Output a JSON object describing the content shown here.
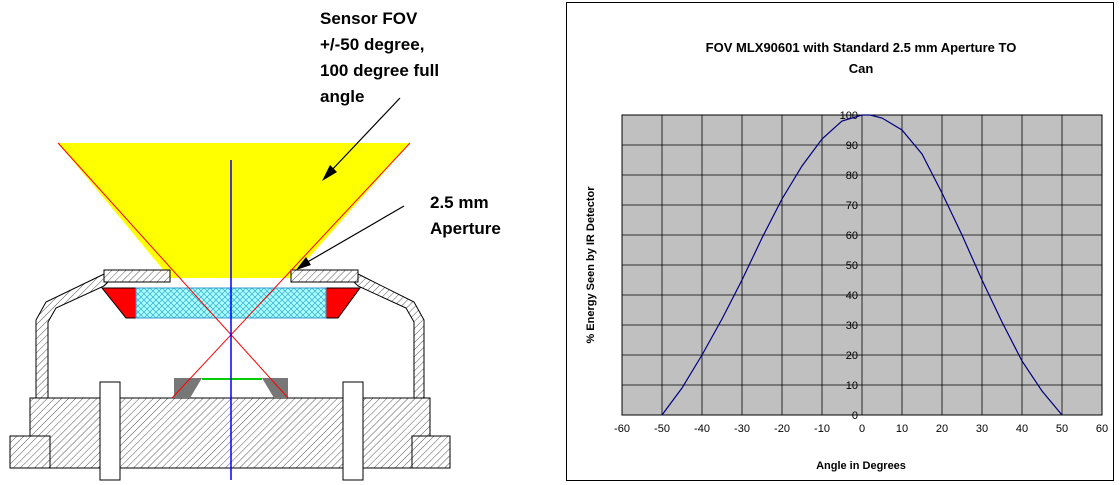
{
  "diagram": {
    "fov_label": [
      "Sensor FOV",
      "+/-50 degree,",
      "100 degree full",
      "angle"
    ],
    "aperture_label": [
      "2.5 mm",
      "Aperture"
    ],
    "colors": {
      "fov_cone": "#ffff00",
      "ray_lines": "#ff0000",
      "optical_axis": "#0000ff",
      "filter_window": "#aaffff",
      "window_supports": "#ff0000",
      "detector": "#00cc00",
      "housing_hatch": "#bbbbbb"
    }
  },
  "chart_data": {
    "type": "line",
    "title": "FOV MLX90601 with Standard 2.5 mm Aperture TO Can",
    "title_lines": [
      "FOV MLX90601 with Standard 2.5 mm Aperture TO",
      "Can"
    ],
    "xlabel": "Angle in Degrees",
    "ylabel": "% Energy Seen by IR Detector",
    "xlim": [
      -60,
      60
    ],
    "ylim": [
      0,
      100
    ],
    "x_ticks": [
      -60,
      -50,
      -40,
      -30,
      -20,
      -10,
      0,
      10,
      20,
      30,
      40,
      50,
      60
    ],
    "y_ticks": [
      0,
      10,
      20,
      30,
      40,
      50,
      60,
      70,
      80,
      90,
      100
    ],
    "grid": true,
    "plot_background": "#c0c0c0",
    "series": [
      {
        "color": "#000080",
        "x": [
          -50,
          -45,
          -40,
          -35,
          -30,
          -25,
          -20,
          -15,
          -10,
          -5,
          0,
          2,
          5,
          10,
          15,
          20,
          25,
          30,
          35,
          40,
          45,
          50
        ],
        "y": [
          0,
          9,
          20,
          32,
          45,
          59,
          72,
          83,
          92,
          98,
          100,
          100,
          99,
          95,
          87,
          74,
          60,
          45,
          31,
          18,
          8,
          0
        ]
      }
    ]
  }
}
